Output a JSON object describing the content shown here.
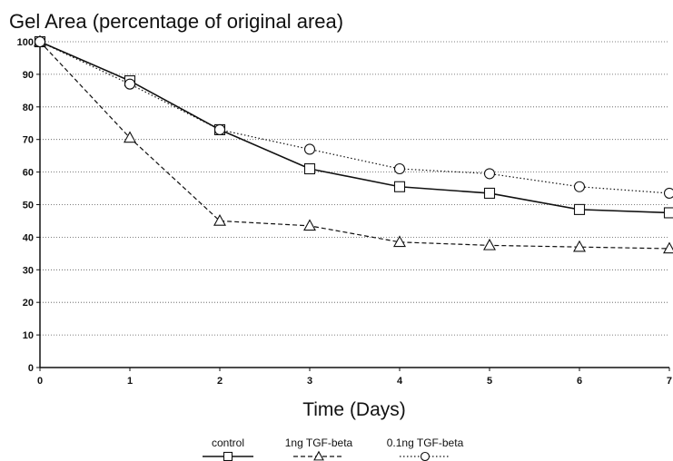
{
  "chart_data": {
    "type": "line",
    "title": "Gel Area (percentage of original area)",
    "xlabel": "Time (Days)",
    "ylabel": "",
    "xlim": [
      0,
      7
    ],
    "ylim": [
      0,
      100
    ],
    "x_ticks": [
      0,
      1,
      2,
      3,
      4,
      5,
      6,
      7
    ],
    "y_ticks": [
      0,
      10,
      20,
      30,
      40,
      50,
      60,
      70,
      80,
      90,
      100
    ],
    "grid": "horizontal dotted",
    "legend_position": "bottom-center",
    "series": [
      {
        "name": "control",
        "marker": "square",
        "line_style": "solid",
        "x": [
          0,
          1,
          2,
          3,
          4,
          5,
          6,
          7
        ],
        "values": [
          100,
          88,
          73,
          61,
          55.5,
          53.5,
          48.5,
          47.5
        ]
      },
      {
        "name": "1ng TGF-beta",
        "marker": "triangle",
        "line_style": "dashed",
        "x": [
          0,
          1,
          2,
          3,
          4,
          5,
          6,
          7
        ],
        "values": [
          100,
          70.5,
          45,
          43.5,
          38.5,
          37.5,
          37,
          36.5
        ]
      },
      {
        "name": "0.1ng TGF-beta",
        "marker": "circle",
        "line_style": "dotted",
        "x": [
          0,
          1,
          2,
          3,
          4,
          5,
          6,
          7
        ],
        "values": [
          100,
          87,
          73,
          67,
          61,
          59.5,
          55.5,
          53.5
        ]
      }
    ]
  }
}
